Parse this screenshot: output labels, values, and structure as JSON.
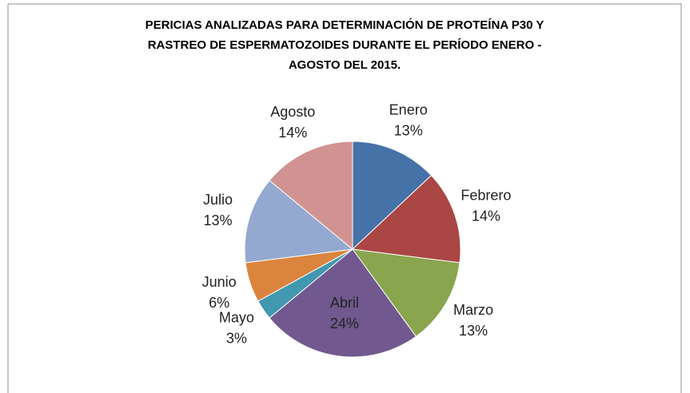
{
  "chart_data": {
    "type": "pie",
    "title": [
      "PERICIAS ANALIZADAS PARA DETERMINACIÓN DE PROTEÍNA P30 Y",
      "RASTREO DE ESPERMATOZOIDES DURANTE EL PERÍODO ENERO -",
      "AGOSTO DEL 2015."
    ],
    "categories": [
      "Enero",
      "Febrero",
      "Marzo",
      "Abril",
      "Mayo",
      "Junio",
      "Julio",
      "Agosto"
    ],
    "values": [
      13,
      14,
      13,
      24,
      3,
      6,
      13,
      14
    ],
    "value_labels": [
      "13%",
      "14%",
      "13%",
      "24%",
      "3%",
      "6%",
      "13%",
      "14%"
    ],
    "colors": [
      "#4572a7",
      "#aa4643",
      "#89a54e",
      "#71588f",
      "#4198af",
      "#db843d",
      "#93a9cf",
      "#d19392"
    ]
  }
}
